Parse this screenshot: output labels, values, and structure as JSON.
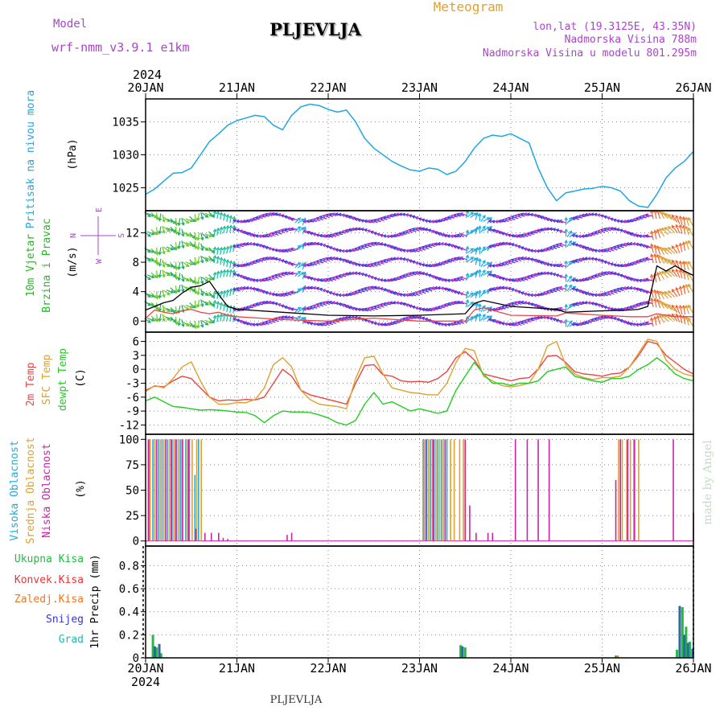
{
  "header": {
    "model_label": "Model",
    "model_name": "wrf-nmm_v3.9.1 e1km",
    "station": "PLJEVLJA",
    "product": "Meteogram",
    "coords": "lon,lat (19.3125E, 43.35N)",
    "elevation": "Nadmorska Visina 788m",
    "model_elevation": "Nadmorska Visina u modelu 801.295m",
    "footer_station": "PLJEVLJA",
    "credit": "made by Angel"
  },
  "colors": {
    "pressure": "#1ea7e1",
    "wind_green": "#22bb22",
    "t2m": "#ee4444",
    "sfc": "#e0a030",
    "dewpt": "#22cc22",
    "cloud_high": "#22aadd",
    "cloud_mid": "#e0a030",
    "cloud_low": "#cc22aa",
    "precip_total": "#22bb44",
    "precip_conv": "#ee3333",
    "precip_frozen": "#ee7722",
    "snow": "#3333dd",
    "graupel": "#22bbaa",
    "violet": "#aa44cc",
    "orange_title": "#e0a030"
  },
  "chart_data": [
    {
      "type": "line",
      "panel": "pressure",
      "ylabel": [
        "Pritisak na nivou mora",
        "(hPa)"
      ],
      "ylim": [
        1021.5,
        1038.5
      ],
      "yticks": [
        1025,
        1030,
        1035
      ],
      "x_days": [
        0,
        0.1,
        0.2,
        0.3,
        0.4,
        0.5,
        0.6,
        0.7,
        0.8,
        0.9,
        1.0,
        1.1,
        1.2,
        1.3,
        1.4,
        1.5,
        1.6,
        1.7,
        1.8,
        1.9,
        2.0,
        2.1,
        2.2,
        2.3,
        2.4,
        2.5,
        2.6,
        2.7,
        2.8,
        2.9,
        3.0,
        3.1,
        3.2,
        3.3,
        3.4,
        3.5,
        3.6,
        3.7,
        3.8,
        3.9,
        4.0,
        4.1,
        4.2,
        4.3,
        4.4,
        4.5,
        4.6,
        4.7,
        4.8,
        4.9,
        5.0,
        5.1,
        5.2,
        5.3,
        5.4,
        5.5,
        5.6,
        5.7,
        5.8,
        5.9,
        6.0
      ],
      "values": [
        1024.0,
        1024.8,
        1026.0,
        1027.2,
        1027.3,
        1028.0,
        1030.0,
        1032.0,
        1033.2,
        1034.5,
        1035.2,
        1035.6,
        1036.0,
        1035.8,
        1034.5,
        1033.8,
        1036.0,
        1037.3,
        1037.7,
        1037.5,
        1036.9,
        1036.5,
        1036.8,
        1035.0,
        1032.5,
        1031.0,
        1030.0,
        1029.0,
        1028.3,
        1027.7,
        1027.5,
        1028.0,
        1027.8,
        1027.0,
        1027.5,
        1029.0,
        1031.0,
        1032.5,
        1033.0,
        1032.8,
        1033.2,
        1032.5,
        1031.8,
        1028.0,
        1025.0,
        1023.0,
        1024.2,
        1024.5,
        1024.8,
        1024.9,
        1025.2,
        1025.0,
        1024.5,
        1023.0,
        1022.2,
        1022.0,
        1024.0,
        1026.5,
        1028.0,
        1029.0,
        1030.5
      ]
    },
    {
      "type": "line",
      "panel": "wind",
      "ylabel": [
        "10m Vjetar",
        "Brzina i Pravac",
        "(m/s)"
      ],
      "direction_legend": [
        "N",
        "W",
        "E",
        "S"
      ],
      "ylim": [
        -1.5,
        15
      ],
      "yticks": [
        0,
        4,
        8,
        12
      ],
      "x_days": [
        0,
        0.1,
        0.2,
        0.3,
        0.4,
        0.5,
        0.6,
        0.7,
        0.8,
        0.9,
        1.0,
        1.5,
        2.0,
        2.5,
        3.0,
        3.5,
        3.6,
        3.7,
        4.0,
        4.5,
        4.6,
        5.0,
        5.3,
        5.4,
        5.5,
        5.6,
        5.7,
        5.8,
        5.9,
        6.0
      ],
      "series": [
        {
          "values": [
            1.5,
            2.0,
            2.5,
            2.8,
            3.8,
            4.6,
            4.8,
            5.4,
            3.6,
            2.0,
            1.6,
            1.2,
            0.8,
            0.7,
            0.8,
            1.0,
            2.4,
            2.8,
            2.0,
            1.6,
            1.2,
            1.4,
            1.5,
            1.6,
            2.0,
            7.5,
            6.8,
            7.5,
            6.8,
            6.2
          ]
        },
        {
          "values": [
            0.4,
            1.5,
            1.2,
            1.0,
            1.4,
            1.6,
            1.2,
            1.0,
            1.2,
            0.8,
            0.6,
            0.2,
            0.0,
            0.4,
            0.0,
            0.0,
            1.5,
            1.8,
            0.8,
            0.7,
            1.1,
            0.8,
            0.6,
            0.6,
            0.6,
            1.0,
            0.8,
            0.6,
            0.6,
            0.6
          ]
        }
      ]
    },
    {
      "type": "line",
      "panel": "temperature",
      "ylabel": [
        "2m Temp",
        "SFC Temp",
        "dewpt Temp",
        "(C)"
      ],
      "ylim": [
        -14,
        8
      ],
      "yticks": [
        -12,
        -9,
        -6,
        -3,
        0,
        3,
        6
      ],
      "x_days": [
        0,
        0.1,
        0.2,
        0.3,
        0.4,
        0.5,
        0.6,
        0.7,
        0.8,
        0.9,
        1.0,
        1.1,
        1.2,
        1.3,
        1.4,
        1.5,
        1.6,
        1.7,
        1.8,
        1.9,
        2.0,
        2.1,
        2.2,
        2.3,
        2.4,
        2.5,
        2.6,
        2.7,
        2.8,
        2.9,
        3.0,
        3.1,
        3.2,
        3.3,
        3.4,
        3.5,
        3.6,
        3.7,
        3.8,
        3.9,
        4.0,
        4.1,
        4.2,
        4.3,
        4.4,
        4.5,
        4.6,
        4.7,
        4.8,
        4.9,
        5.0,
        5.1,
        5.2,
        5.3,
        5.4,
        5.5,
        5.6,
        5.7,
        5.8,
        5.9,
        6.0
      ],
      "series": [
        {
          "name": "2m Temp",
          "values": [
            -4.5,
            -3.6,
            -3.8,
            -2.5,
            -1.5,
            -2.0,
            -4.0,
            -6.0,
            -6.8,
            -6.6,
            -6.7,
            -6.5,
            -6.6,
            -6.0,
            -3.0,
            0.0,
            -1.5,
            -4.5,
            -5.5,
            -6.0,
            -6.5,
            -7.0,
            -7.5,
            -3.0,
            0.8,
            1.0,
            -1.2,
            -1.5,
            -2.5,
            -2.7,
            -2.6,
            -2.8,
            -2.0,
            -0.5,
            2.5,
            3.8,
            2.0,
            -1.0,
            -1.5,
            -2.0,
            -2.5,
            -2.0,
            -1.8,
            0.0,
            2.8,
            3.0,
            1.5,
            -0.5,
            -1.0,
            -1.2,
            -1.5,
            -1.0,
            -0.8,
            0.5,
            3.0,
            6.0,
            5.5,
            3.0,
            1.5,
            0.0,
            -1.0
          ]
        },
        {
          "name": "SFC Temp",
          "values": [
            -4.8,
            -3.5,
            -4.0,
            -2.0,
            0.5,
            1.6,
            -2.5,
            -6.0,
            -7.5,
            -7.5,
            -7.2,
            -7.2,
            -6.5,
            -4.0,
            1.0,
            2.5,
            0.5,
            -4.5,
            -6.5,
            -7.5,
            -7.8,
            -8.0,
            -8.5,
            -2.0,
            2.5,
            2.8,
            -1.0,
            -4.0,
            -4.5,
            -5.0,
            -5.2,
            -5.5,
            -5.5,
            -3.0,
            1.5,
            4.5,
            4.0,
            -1.5,
            -2.5,
            -3.5,
            -3.8,
            -3.5,
            -3.0,
            0.0,
            5.0,
            6.0,
            1.0,
            -1.0,
            -1.8,
            -2.2,
            -1.8,
            -1.8,
            -1.5,
            0.5,
            3.5,
            6.5,
            6.0,
            2.0,
            0.0,
            -1.0,
            -1.5
          ]
        },
        {
          "name": "dewpt Temp",
          "values": [
            -6.8,
            -6.0,
            -7.0,
            -8.0,
            -8.2,
            -8.5,
            -8.8,
            -8.7,
            -8.8,
            -9.0,
            -9.2,
            -9.3,
            -10.0,
            -11.5,
            -10.0,
            -9.0,
            -9.2,
            -9.2,
            -9.3,
            -9.8,
            -10.5,
            -11.5,
            -12.0,
            -11.0,
            -7.5,
            -5.0,
            -7.5,
            -7.0,
            -8.0,
            -9.0,
            -8.5,
            -9.0,
            -9.5,
            -9.0,
            -4.5,
            -1.5,
            1.5,
            -1.0,
            -3.0,
            -3.0,
            -3.5,
            -3.0,
            -3.0,
            -2.5,
            -0.5,
            0.0,
            0.5,
            -1.5,
            -2.0,
            -2.5,
            -2.8,
            -2.0,
            -2.0,
            -1.5,
            0.0,
            1.0,
            2.5,
            1.0,
            -1.0,
            -2.0,
            -2.5
          ]
        }
      ]
    },
    {
      "type": "bar",
      "panel": "clouds",
      "ylabel": [
        "Visoka Oblacnost",
        "Srednja Oblacnost",
        "Niska Oblacnost",
        "(%)"
      ],
      "ylim": [
        -5,
        105
      ],
      "yticks": [
        0,
        25,
        50,
        75,
        100
      ],
      "series": [
        {
          "name": "Visoka Oblacnost",
          "x_days": [
            0.04,
            0.08,
            0.14,
            0.18,
            0.24,
            0.29,
            0.34,
            0.38,
            0.44,
            0.48,
            0.54,
            0.58,
            3.04,
            3.08,
            3.12,
            3.16,
            3.2,
            3.24,
            3.3
          ],
          "values": [
            100,
            100,
            100,
            100,
            100,
            100,
            100,
            100,
            100,
            100,
            65,
            100,
            100,
            100,
            100,
            100,
            100,
            100,
            100
          ]
        },
        {
          "name": "Srednja Oblacnost",
          "x_days": [
            0.05,
            0.1,
            0.16,
            0.2,
            0.26,
            0.31,
            0.36,
            0.41,
            0.46,
            0.51,
            0.56,
            0.61,
            3.05,
            3.1,
            3.14,
            3.18,
            3.22,
            3.26,
            3.34,
            3.38,
            3.44,
            3.48,
            5.18,
            5.22,
            5.27,
            5.31,
            5.36,
            5.4
          ],
          "values": [
            100,
            100,
            100,
            100,
            100,
            100,
            100,
            100,
            100,
            100,
            100,
            100,
            100,
            100,
            100,
            100,
            100,
            100,
            100,
            100,
            100,
            100,
            100,
            100,
            100,
            100,
            100,
            100
          ]
        },
        {
          "name": "Niska Oblacnost",
          "x_days": [
            0.03,
            0.12,
            0.22,
            0.28,
            0.33,
            0.4,
            0.47,
            0.55,
            0.65,
            0.72,
            0.8,
            0.85,
            0.9,
            1.55,
            1.6,
            3.07,
            3.15,
            3.28,
            3.5,
            3.55,
            3.62,
            3.75,
            3.8,
            4.05,
            4.18,
            4.3,
            4.42,
            5.15,
            5.2,
            5.28,
            5.35,
            5.78,
            6.0
          ],
          "values": [
            100,
            100,
            100,
            100,
            100,
            100,
            100,
            12,
            8,
            8,
            8,
            3,
            2,
            6,
            8,
            100,
            100,
            100,
            100,
            35,
            8,
            8,
            8,
            100,
            100,
            100,
            100,
            60,
            100,
            100,
            100,
            100,
            28
          ]
        }
      ]
    },
    {
      "type": "bar",
      "panel": "precip",
      "ylabel": [
        "1hr Precip (mm)"
      ],
      "legend": [
        "Ukupna Kisa",
        "Konvek.Kisa",
        "Zaledj.Kisa",
        "Snijeg",
        "Grad"
      ],
      "ylim": [
        0,
        0.97
      ],
      "yticks": [
        0,
        0.2,
        0.4,
        0.6,
        0.8
      ],
      "series": [
        {
          "name": "Ukupna Kisa",
          "x_days": [
            0.08,
            0.12,
            0.17,
            3.45,
            3.5,
            5.15,
            5.82,
            5.88,
            5.92,
            5.96
          ],
          "values": [
            0.2,
            0.09,
            0.04,
            0.11,
            0.09,
            0.02,
            0.07,
            0.44,
            0.27,
            0.14
          ]
        },
        {
          "name": "Snijeg",
          "x_days": [
            0.1,
            0.15,
            3.47,
            5.85,
            5.9,
            5.94,
            5.99
          ],
          "values": [
            0.1,
            0.12,
            0.1,
            0.45,
            0.2,
            0.13,
            0.08
          ]
        },
        {
          "name": "Zaledj.Kisa",
          "x_days": [
            5.17
          ],
          "values": [
            0.02
          ]
        }
      ]
    }
  ],
  "axes": {
    "x_day_labels": [
      "20JAN",
      "21JAN",
      "22JAN",
      "23JAN",
      "24JAN",
      "25JAN",
      "26JAN"
    ],
    "year": "2024"
  }
}
